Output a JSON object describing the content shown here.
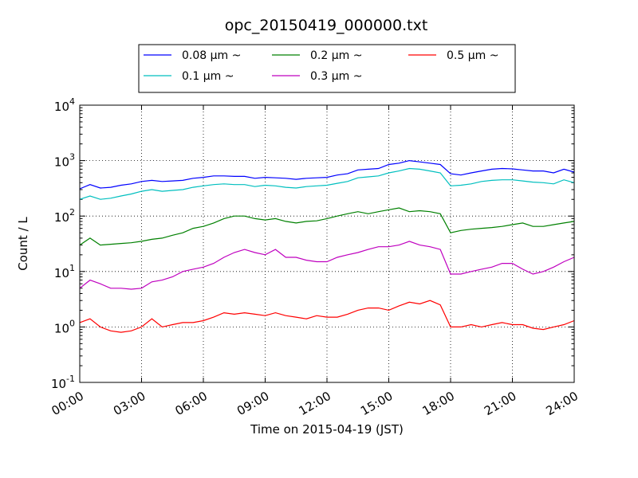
{
  "chart_data": {
    "type": "line",
    "title": "opc_20150419_000000.txt",
    "xlabel": "Time on 2015-04-19 (JST)",
    "ylabel": "Count / L",
    "yscale": "log",
    "ylim": [
      0.1,
      10000
    ],
    "xlim": [
      "2015-04-19 00:00",
      "2015-04-20 00:00"
    ],
    "x_tick_labels": [
      "00:00",
      "03:00",
      "06:00",
      "09:00",
      "12:00",
      "15:00",
      "18:00",
      "21:00",
      "24:00"
    ],
    "y_tick_labels": [
      {
        "base": "10",
        "exp": "-1"
      },
      {
        "base": "10",
        "exp": "0"
      },
      {
        "base": "10",
        "exp": "1"
      },
      {
        "base": "10",
        "exp": "2"
      },
      {
        "base": "10",
        "exp": "3"
      },
      {
        "base": "10",
        "exp": "4"
      }
    ],
    "grid": true,
    "legend_position": "top-center",
    "x": [
      "00:00",
      "00:30",
      "01:00",
      "01:30",
      "02:00",
      "02:30",
      "03:00",
      "03:30",
      "04:00",
      "04:30",
      "05:00",
      "05:30",
      "06:00",
      "06:30",
      "07:00",
      "07:30",
      "08:00",
      "08:30",
      "09:00",
      "09:30",
      "10:00",
      "10:30",
      "11:00",
      "11:30",
      "12:00",
      "12:30",
      "13:00",
      "13:30",
      "14:00",
      "14:30",
      "15:00",
      "15:30",
      "16:00",
      "16:30",
      "17:00",
      "17:30",
      "18:00",
      "18:30",
      "19:00",
      "19:30",
      "20:00",
      "20:30",
      "21:00",
      "21:30",
      "22:00",
      "22:30",
      "23:00",
      "23:30",
      "24:00"
    ],
    "series": [
      {
        "name": "0.08 μm ~",
        "color": "#0000ff",
        "values": [
          310,
          370,
          320,
          330,
          360,
          380,
          420,
          440,
          420,
          430,
          440,
          480,
          500,
          530,
          530,
          520,
          520,
          480,
          500,
          490,
          480,
          460,
          480,
          490,
          500,
          550,
          580,
          680,
          700,
          720,
          850,
          900,
          1000,
          950,
          900,
          850,
          580,
          550,
          600,
          650,
          700,
          720,
          710,
          680,
          650,
          650,
          600,
          700,
          620
        ]
      },
      {
        "name": "0.1 μm ~",
        "color": "#00bfbf",
        "values": [
          200,
          230,
          200,
          210,
          230,
          250,
          280,
          300,
          280,
          290,
          300,
          330,
          350,
          370,
          380,
          370,
          370,
          340,
          360,
          350,
          330,
          320,
          340,
          350,
          360,
          390,
          420,
          490,
          510,
          530,
          600,
          650,
          720,
          700,
          650,
          600,
          350,
          360,
          380,
          420,
          440,
          450,
          450,
          430,
          410,
          400,
          380,
          450,
          400
        ]
      },
      {
        "name": "0.2 μm ~",
        "color": "#008000",
        "values": [
          30,
          40,
          30,
          31,
          32,
          33,
          35,
          38,
          40,
          45,
          50,
          60,
          65,
          75,
          90,
          100,
          100,
          90,
          85,
          90,
          80,
          75,
          80,
          82,
          90,
          100,
          110,
          120,
          110,
          120,
          130,
          140,
          120,
          125,
          120,
          110,
          50,
          55,
          58,
          60,
          62,
          65,
          70,
          75,
          65,
          65,
          70,
          75,
          80
        ]
      },
      {
        "name": "0.3 μm ~",
        "color": "#bf00bf",
        "values": [
          5,
          7,
          6,
          5,
          5,
          4.8,
          5,
          6.5,
          7,
          8,
          10,
          11,
          12,
          14,
          18,
          22,
          25,
          22,
          20,
          25,
          18,
          18,
          16,
          15,
          15,
          18,
          20,
          22,
          25,
          28,
          28,
          30,
          35,
          30,
          28,
          25,
          9,
          9,
          10,
          11,
          12,
          14,
          14,
          11,
          9,
          10,
          12,
          15,
          18
        ]
      },
      {
        "name": "0.5 μm ~",
        "color": "#ff0000",
        "values": [
          1.2,
          1.4,
          1.0,
          0.85,
          0.8,
          0.85,
          1.0,
          1.4,
          1.0,
          1.1,
          1.2,
          1.2,
          1.3,
          1.5,
          1.8,
          1.7,
          1.8,
          1.7,
          1.6,
          1.8,
          1.6,
          1.5,
          1.4,
          1.6,
          1.5,
          1.5,
          1.7,
          2.0,
          2.2,
          2.2,
          2.0,
          2.4,
          2.8,
          2.6,
          3.0,
          2.5,
          1.0,
          1.0,
          1.1,
          1.0,
          1.1,
          1.2,
          1.1,
          1.1,
          0.95,
          0.9,
          1.0,
          1.1,
          1.3
        ]
      }
    ]
  }
}
